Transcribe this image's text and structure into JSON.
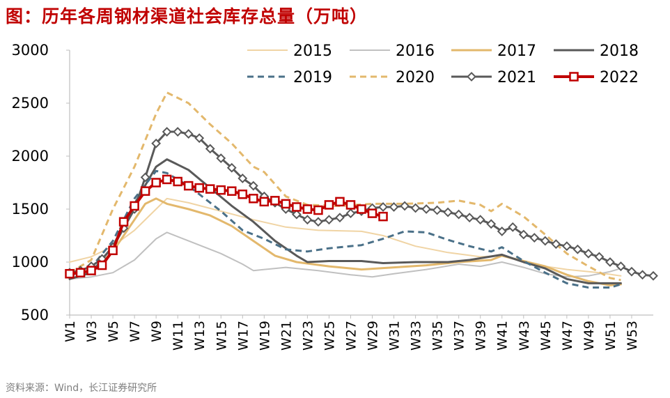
{
  "title": "图：历年各周钢材渠道社会库存总量（万吨）",
  "source": "资料来源：Wind，长江证券研究所",
  "chart_data": {
    "type": "line",
    "title": "历年各周钢材渠道社会库存总量（万吨）",
    "xlabel": "",
    "ylabel": "",
    "ylim": [
      500,
      3000
    ],
    "yticks": [
      500,
      1000,
      1500,
      2000,
      2500,
      3000
    ],
    "x_ticks": [
      "W1",
      "W3",
      "W5",
      "W7",
      "W9",
      "W11",
      "W13",
      "W15",
      "W17",
      "W19",
      "W21",
      "W23",
      "W25",
      "W27",
      "W29",
      "W31",
      "W33",
      "W35",
      "W37",
      "W39",
      "W41",
      "W43",
      "W45",
      "W47",
      "W49",
      "W51",
      "W53"
    ],
    "legend_position": "top-right",
    "series": [
      {
        "name": "2015",
        "color": "#f0d4a4",
        "width": 2,
        "dash": "",
        "marker": "none",
        "points": [
          [
            1,
            1000
          ],
          [
            3,
            1050
          ],
          [
            5,
            1150
          ],
          [
            7,
            1300
          ],
          [
            9,
            1500
          ],
          [
            10,
            1600
          ],
          [
            12,
            1560
          ],
          [
            15,
            1480
          ],
          [
            18,
            1400
          ],
          [
            21,
            1330
          ],
          [
            24,
            1300
          ],
          [
            28,
            1290
          ],
          [
            30,
            1250
          ],
          [
            33,
            1150
          ],
          [
            36,
            1090
          ],
          [
            39,
            1050
          ],
          [
            41,
            1060
          ],
          [
            43,
            1000
          ],
          [
            45,
            960
          ],
          [
            47,
            930
          ],
          [
            50,
            900
          ],
          [
            52,
            870
          ]
        ]
      },
      {
        "name": "2016",
        "color": "#c0c0c0",
        "width": 2,
        "dash": "",
        "marker": "none",
        "points": [
          [
            1,
            840
          ],
          [
            3,
            860
          ],
          [
            5,
            900
          ],
          [
            7,
            1020
          ],
          [
            9,
            1220
          ],
          [
            10,
            1280
          ],
          [
            12,
            1200
          ],
          [
            15,
            1080
          ],
          [
            17,
            980
          ],
          [
            18,
            920
          ],
          [
            21,
            950
          ],
          [
            24,
            920
          ],
          [
            27,
            880
          ],
          [
            29,
            860
          ],
          [
            31,
            890
          ],
          [
            34,
            930
          ],
          [
            37,
            980
          ],
          [
            39,
            960
          ],
          [
            41,
            1000
          ],
          [
            43,
            950
          ],
          [
            45,
            890
          ],
          [
            47,
            860
          ],
          [
            49,
            870
          ],
          [
            51,
            910
          ],
          [
            52,
            940
          ]
        ]
      },
      {
        "name": "2017",
        "color": "#e3b86c",
        "width": 3,
        "dash": "",
        "marker": "none",
        "points": [
          [
            1,
            840
          ],
          [
            3,
            900
          ],
          [
            5,
            1100
          ],
          [
            7,
            1400
          ],
          [
            8,
            1550
          ],
          [
            9,
            1600
          ],
          [
            10,
            1550
          ],
          [
            12,
            1500
          ],
          [
            14,
            1440
          ],
          [
            16,
            1340
          ],
          [
            18,
            1200
          ],
          [
            20,
            1060
          ],
          [
            22,
            1000
          ],
          [
            25,
            960
          ],
          [
            28,
            930
          ],
          [
            31,
            950
          ],
          [
            34,
            970
          ],
          [
            37,
            1000
          ],
          [
            40,
            1020
          ],
          [
            41,
            1060
          ],
          [
            43,
            1010
          ],
          [
            45,
            960
          ],
          [
            47,
            880
          ],
          [
            49,
            820
          ],
          [
            51,
            780
          ],
          [
            52,
            790
          ]
        ]
      },
      {
        "name": "2018",
        "color": "#595959",
        "width": 3,
        "dash": "",
        "marker": "none",
        "points": [
          [
            1,
            840
          ],
          [
            3,
            900
          ],
          [
            5,
            1150
          ],
          [
            7,
            1550
          ],
          [
            9,
            1900
          ],
          [
            10,
            1970
          ],
          [
            12,
            1870
          ],
          [
            14,
            1700
          ],
          [
            16,
            1530
          ],
          [
            18,
            1380
          ],
          [
            20,
            1200
          ],
          [
            22,
            1060
          ],
          [
            23,
            1000
          ],
          [
            25,
            1010
          ],
          [
            28,
            1010
          ],
          [
            30,
            990
          ],
          [
            33,
            1000
          ],
          [
            36,
            1000
          ],
          [
            38,
            1020
          ],
          [
            41,
            1070
          ],
          [
            43,
            1000
          ],
          [
            45,
            940
          ],
          [
            47,
            840
          ],
          [
            49,
            800
          ],
          [
            51,
            800
          ],
          [
            52,
            800
          ]
        ]
      },
      {
        "name": "2019",
        "color": "#4a7088",
        "width": 3,
        "dash": "9,6",
        "marker": "none",
        "points": [
          [
            1,
            870
          ],
          [
            3,
            950
          ],
          [
            5,
            1200
          ],
          [
            7,
            1600
          ],
          [
            9,
            1860
          ],
          [
            10,
            1840
          ],
          [
            12,
            1720
          ],
          [
            15,
            1480
          ],
          [
            17,
            1300
          ],
          [
            19,
            1220
          ],
          [
            21,
            1120
          ],
          [
            23,
            1100
          ],
          [
            25,
            1130
          ],
          [
            28,
            1160
          ],
          [
            30,
            1220
          ],
          [
            32,
            1290
          ],
          [
            34,
            1280
          ],
          [
            36,
            1210
          ],
          [
            38,
            1150
          ],
          [
            40,
            1100
          ],
          [
            41,
            1140
          ],
          [
            43,
            1010
          ],
          [
            45,
            900
          ],
          [
            47,
            800
          ],
          [
            49,
            760
          ],
          [
            51,
            760
          ],
          [
            52,
            790
          ]
        ]
      },
      {
        "name": "2020",
        "color": "#e3b86c",
        "width": 3,
        "dash": "9,6",
        "marker": "none",
        "points": [
          [
            1,
            900
          ],
          [
            3,
            1020
          ],
          [
            5,
            1500
          ],
          [
            7,
            1900
          ],
          [
            9,
            2400
          ],
          [
            10,
            2600
          ],
          [
            12,
            2500
          ],
          [
            14,
            2300
          ],
          [
            16,
            2120
          ],
          [
            18,
            1900
          ],
          [
            19,
            1850
          ],
          [
            21,
            1620
          ],
          [
            23,
            1540
          ],
          [
            26,
            1530
          ],
          [
            29,
            1550
          ],
          [
            32,
            1550
          ],
          [
            35,
            1560
          ],
          [
            37,
            1580
          ],
          [
            39,
            1540
          ],
          [
            40,
            1480
          ],
          [
            41,
            1550
          ],
          [
            43,
            1430
          ],
          [
            45,
            1260
          ],
          [
            47,
            1080
          ],
          [
            49,
            960
          ],
          [
            51,
            850
          ],
          [
            52,
            830
          ]
        ]
      },
      {
        "name": "2021",
        "color": "#595959",
        "width": 3,
        "dash": "",
        "marker": "diamond",
        "points": [
          [
            1,
            900
          ],
          [
            2,
            920
          ],
          [
            3,
            960
          ],
          [
            4,
            1030
          ],
          [
            5,
            1140
          ],
          [
            6,
            1320
          ],
          [
            7,
            1500
          ],
          [
            8,
            1800
          ],
          [
            9,
            2120
          ],
          [
            10,
            2230
          ],
          [
            11,
            2230
          ],
          [
            12,
            2210
          ],
          [
            13,
            2170
          ],
          [
            14,
            2070
          ],
          [
            15,
            1980
          ],
          [
            16,
            1890
          ],
          [
            17,
            1790
          ],
          [
            18,
            1720
          ],
          [
            19,
            1620
          ],
          [
            20,
            1560
          ],
          [
            21,
            1500
          ],
          [
            22,
            1450
          ],
          [
            23,
            1400
          ],
          [
            24,
            1380
          ],
          [
            25,
            1400
          ],
          [
            26,
            1420
          ],
          [
            27,
            1460
          ],
          [
            28,
            1480
          ],
          [
            29,
            1510
          ],
          [
            30,
            1520
          ],
          [
            31,
            1520
          ],
          [
            32,
            1530
          ],
          [
            33,
            1510
          ],
          [
            34,
            1500
          ],
          [
            35,
            1490
          ],
          [
            36,
            1470
          ],
          [
            37,
            1450
          ],
          [
            38,
            1420
          ],
          [
            39,
            1400
          ],
          [
            40,
            1360
          ],
          [
            41,
            1290
          ],
          [
            42,
            1330
          ],
          [
            43,
            1260
          ],
          [
            44,
            1230
          ],
          [
            45,
            1200
          ],
          [
            46,
            1170
          ],
          [
            47,
            1150
          ],
          [
            48,
            1120
          ],
          [
            49,
            1080
          ],
          [
            50,
            1050
          ],
          [
            51,
            1000
          ],
          [
            52,
            960
          ],
          [
            53,
            910
          ],
          [
            54,
            880
          ],
          [
            55,
            870
          ]
        ]
      },
      {
        "name": "2022",
        "color": "#c00000",
        "width": 4,
        "dash": "",
        "marker": "square",
        "points": [
          [
            1,
            890
          ],
          [
            2,
            900
          ],
          [
            3,
            920
          ],
          [
            4,
            970
          ],
          [
            5,
            1110
          ],
          [
            6,
            1380
          ],
          [
            7,
            1530
          ],
          [
            8,
            1670
          ],
          [
            9,
            1750
          ],
          [
            10,
            1780
          ],
          [
            11,
            1760
          ],
          [
            12,
            1720
          ],
          [
            13,
            1700
          ],
          [
            14,
            1690
          ],
          [
            15,
            1680
          ],
          [
            16,
            1670
          ],
          [
            17,
            1640
          ],
          [
            18,
            1600
          ],
          [
            19,
            1570
          ],
          [
            20,
            1580
          ],
          [
            21,
            1550
          ],
          [
            22,
            1520
          ],
          [
            23,
            1500
          ],
          [
            24,
            1490
          ],
          [
            25,
            1540
          ],
          [
            26,
            1570
          ],
          [
            27,
            1540
          ],
          [
            28,
            1500
          ],
          [
            29,
            1460
          ],
          [
            30,
            1430
          ]
        ]
      }
    ]
  }
}
